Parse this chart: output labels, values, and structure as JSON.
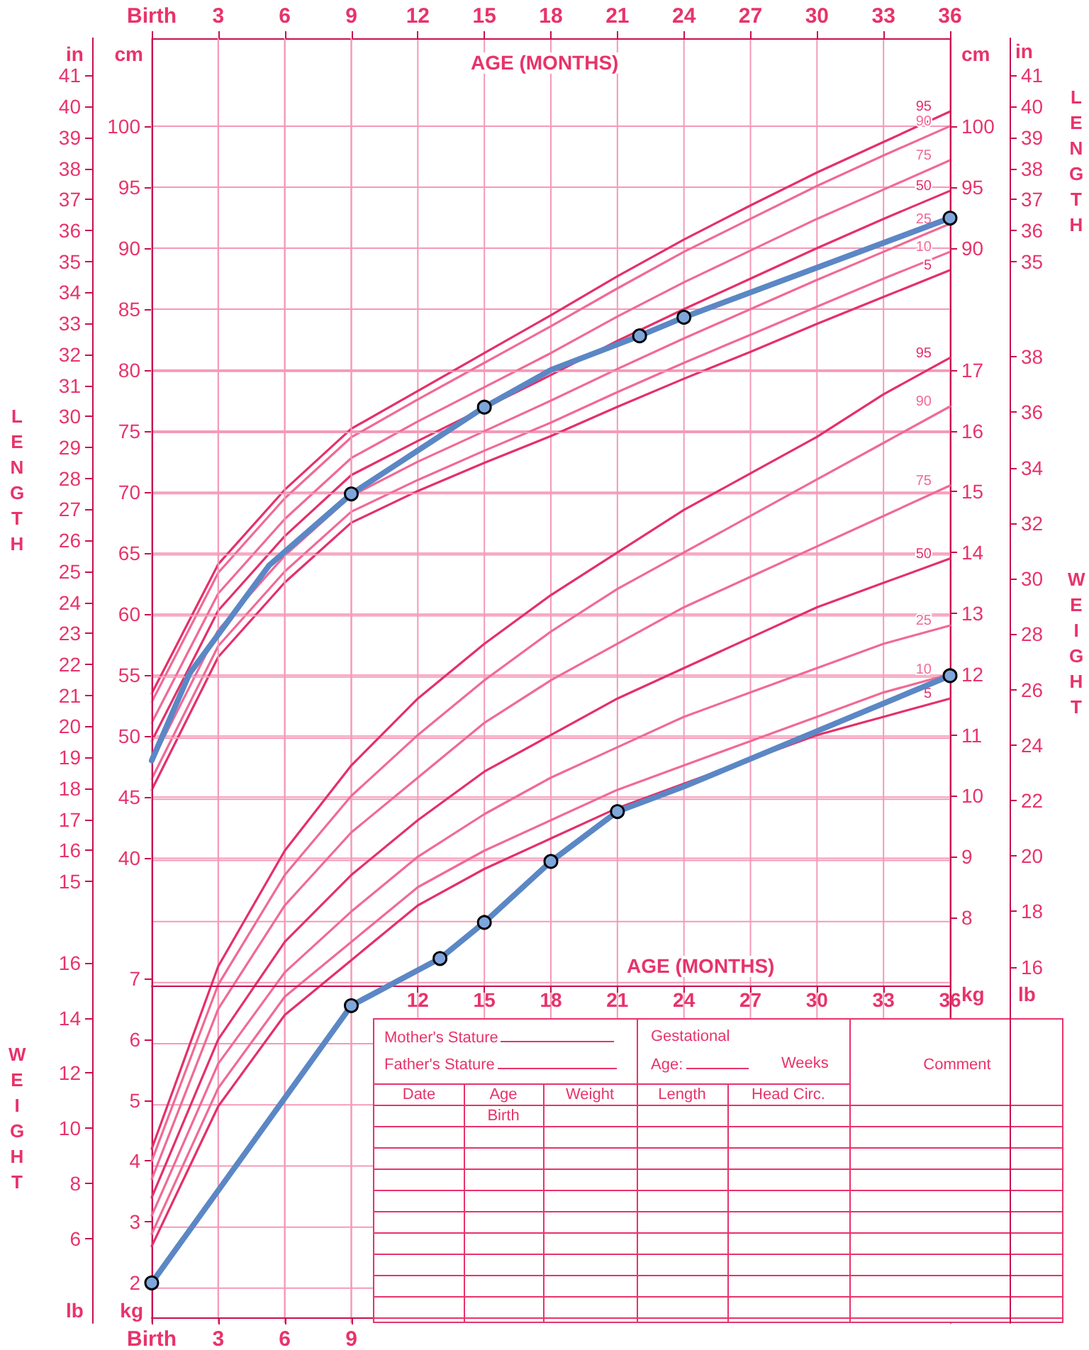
{
  "chart_data": [
    {
      "type": "line",
      "x": [
        0,
        3,
        6,
        9,
        12,
        15,
        18,
        21,
        24,
        27,
        30,
        33,
        36
      ],
      "xlim": [
        0,
        36
      ],
      "x2lim": [
        0,
        36
      ],
      "x2ticks": [
        {
          "value": 0,
          "label": "Birth"
        },
        3,
        6,
        9,
        12,
        15,
        18,
        21,
        24,
        27,
        30,
        33,
        36
      ],
      "x2label": "AGE (MONTHS)",
      "ylim": [
        1.9,
        107.2
      ],
      "yticks": [
        40,
        45,
        50,
        55,
        60,
        65,
        70,
        75,
        80,
        85,
        90,
        95,
        100
      ],
      "ylabel": "cm",
      "y2lim": [
        1.9,
        107.2
      ],
      "y2ticks": [
        90,
        95,
        100
      ],
      "y2label": "cm",
      "y3lim": [
        0.75,
        42.2
      ],
      "y3ticks": [
        15,
        16,
        17,
        18,
        19,
        20,
        21,
        22,
        23,
        24,
        25,
        26,
        27,
        28,
        29,
        30,
        31,
        32,
        33,
        34,
        35,
        36,
        37,
        38,
        39,
        40,
        41
      ],
      "y3label": "in",
      "grid": true,
      "annotations": [
        "LENGTH",
        "LENGTH"
      ],
      "series": [
        {
          "name": "95",
          "color": "#e4306a",
          "values": [
            53.5,
            64.1,
            70.2,
            75.2,
            78.3,
            81.4,
            84.5,
            87.7,
            90.7,
            93.5,
            96.2,
            98.7,
            101.2
          ]
        },
        {
          "name": "90",
          "color": "#f06a95",
          "values": [
            52.8,
            63.4,
            69.5,
            74.5,
            77.6,
            80.6,
            83.6,
            86.7,
            89.7,
            92.4,
            95.1,
            97.6,
            100.0
          ]
        },
        {
          "name": "75",
          "color": "#f06a95",
          "values": [
            51.1,
            61.7,
            67.8,
            72.8,
            75.8,
            78.6,
            81.4,
            84.4,
            87.2,
            89.8,
            92.4,
            94.8,
            97.2
          ]
        },
        {
          "name": "50",
          "color": "#e4306a",
          "values": [
            49.6,
            60.3,
            66.4,
            71.4,
            74.2,
            76.9,
            79.6,
            82.4,
            85.0,
            87.5,
            90.0,
            92.4,
            94.7
          ]
        },
        {
          "name": "25",
          "color": "#f06a95",
          "values": [
            47.9,
            58.7,
            64.8,
            69.7,
            72.5,
            75.0,
            77.5,
            80.1,
            82.6,
            85.0,
            87.4,
            89.7,
            92.0
          ]
        },
        {
          "name": "10",
          "color": "#f06a95",
          "values": [
            46.5,
            57.4,
            63.5,
            68.4,
            71.0,
            73.4,
            75.7,
            78.2,
            80.6,
            82.9,
            85.2,
            87.5,
            89.7
          ]
        },
        {
          "name": "5",
          "color": "#e4306a",
          "values": [
            45.6,
            56.5,
            62.6,
            67.5,
            70.1,
            72.4,
            74.6,
            77.0,
            79.3,
            81.5,
            83.8,
            86.0,
            88.2
          ]
        }
      ]
    },
    {
      "type": "line",
      "x": [
        0,
        3,
        6,
        9,
        12,
        15,
        18,
        21,
        24,
        27,
        30,
        33,
        36
      ],
      "xlim": [
        0,
        36
      ],
      "xticks": [
        {
          "value": 0,
          "label": "Birth"
        },
        3,
        6,
        9
      ],
      "ylim": [
        1.43,
        22.45
      ],
      "yticks": [
        2,
        3,
        4,
        5,
        6,
        7
      ],
      "ylabel": "kg",
      "y2lim": [
        1.43,
        22.45
      ],
      "y2ticks": [
        8,
        9,
        10,
        11,
        12,
        13,
        14,
        15,
        16,
        17
      ],
      "y2label": "kg",
      "y3lim": [
        3.15,
        49.49
      ],
      "y3ticks": [
        6,
        8,
        10,
        12,
        14,
        16
      ],
      "y3label": "lb",
      "grid": true,
      "annotations": [
        "WEIGHT",
        "WEIGHT",
        "Mother's Stature",
        "Father's Stature",
        "Gestational",
        "Age:",
        "Weeks",
        "Date",
        "Age",
        "Weight",
        "Length",
        "Head Circ.",
        "Birth",
        "Comment"
      ],
      "series": [
        {
          "name": "95",
          "color": "#e4306a",
          "values": [
            4.2,
            7.2,
            9.1,
            10.5,
            11.6,
            12.5,
            13.3,
            14.0,
            14.7,
            15.3,
            15.9,
            16.6,
            17.2
          ]
        },
        {
          "name": "90",
          "color": "#f06a95",
          "values": [
            4.0,
            6.9,
            8.7,
            10.0,
            11.0,
            11.9,
            12.7,
            13.4,
            14.0,
            14.6,
            15.2,
            15.8,
            16.4
          ]
        },
        {
          "name": "75",
          "color": "#f06a95",
          "values": [
            3.7,
            6.5,
            8.2,
            9.4,
            10.3,
            11.2,
            11.9,
            12.5,
            13.1,
            13.6,
            14.1,
            14.6,
            15.1
          ]
        },
        {
          "name": "50",
          "color": "#e4306a",
          "values": [
            3.4,
            6.0,
            7.6,
            8.7,
            9.6,
            10.4,
            11.0,
            11.6,
            12.1,
            12.6,
            13.1,
            13.5,
            13.9
          ]
        },
        {
          "name": "25",
          "color": "#f06a95",
          "values": [
            3.1,
            5.6,
            7.1,
            8.1,
            9.0,
            9.7,
            10.3,
            10.8,
            11.3,
            11.7,
            12.1,
            12.5,
            12.8
          ]
        },
        {
          "name": "10",
          "color": "#f06a95",
          "values": [
            2.8,
            5.2,
            6.7,
            7.6,
            8.5,
            9.1,
            9.6,
            10.1,
            10.5,
            10.9,
            11.3,
            11.7,
            12.0
          ]
        },
        {
          "name": "5",
          "color": "#e4306a",
          "values": [
            2.6,
            4.9,
            6.4,
            7.3,
            8.2,
            8.8,
            9.3,
            9.8,
            10.2,
            10.6,
            11.0,
            11.3,
            11.6
          ]
        }
      ]
    },
    {
      "type": "line",
      "xlim": [
        0,
        36
      ],
      "xticks": [
        12,
        15,
        18,
        21,
        24,
        27,
        30,
        33,
        36
      ],
      "xlabel": "AGE (MONTHS)",
      "y2lim": [
        0.75,
        42.2
      ],
      "y2ticks": [
        35,
        36,
        37,
        38,
        39,
        40,
        41
      ],
      "y2label": "in",
      "y3lim": [
        3.15,
        49.49
      ],
      "y3ticks": [
        16,
        18,
        20,
        22,
        24,
        26,
        28,
        30,
        32,
        34,
        36,
        38
      ],
      "y3label": "lb",
      "series": [
        {
          "color": "#5b87c5",
          "axis": "y2",
          "marker": "none",
          "x": [
            0,
            1.7,
            5.3,
            9,
            15,
            18,
            22,
            24,
            36
          ],
          "values": [
            18.9,
            21.7,
            25.2,
            27.5,
            30.3,
            31.5,
            32.6,
            33.2,
            36.4
          ]
        },
        {
          "type": "scatter",
          "color": "#7fa6dc",
          "axis": "y2",
          "marker": "circle",
          "x": [
            9,
            15,
            22,
            24,
            36
          ],
          "values": [
            27.5,
            30.3,
            32.6,
            33.2,
            36.4
          ]
        },
        {
          "color": "#5b87c5",
          "axis": "y3",
          "marker": "none",
          "x": [
            0,
            9,
            13,
            15,
            18,
            21,
            24,
            36
          ],
          "values": [
            4.6,
            14.6,
            16.3,
            17.6,
            19.8,
            21.6,
            22.5,
            26.5
          ]
        },
        {
          "type": "scatter",
          "color": "#7fa6dc",
          "axis": "y3",
          "marker": "circle",
          "x": [
            0,
            9,
            13,
            15,
            18,
            21,
            36
          ],
          "values": [
            4.6,
            14.6,
            16.3,
            17.6,
            19.8,
            21.6,
            26.5
          ]
        }
      ]
    }
  ]
}
